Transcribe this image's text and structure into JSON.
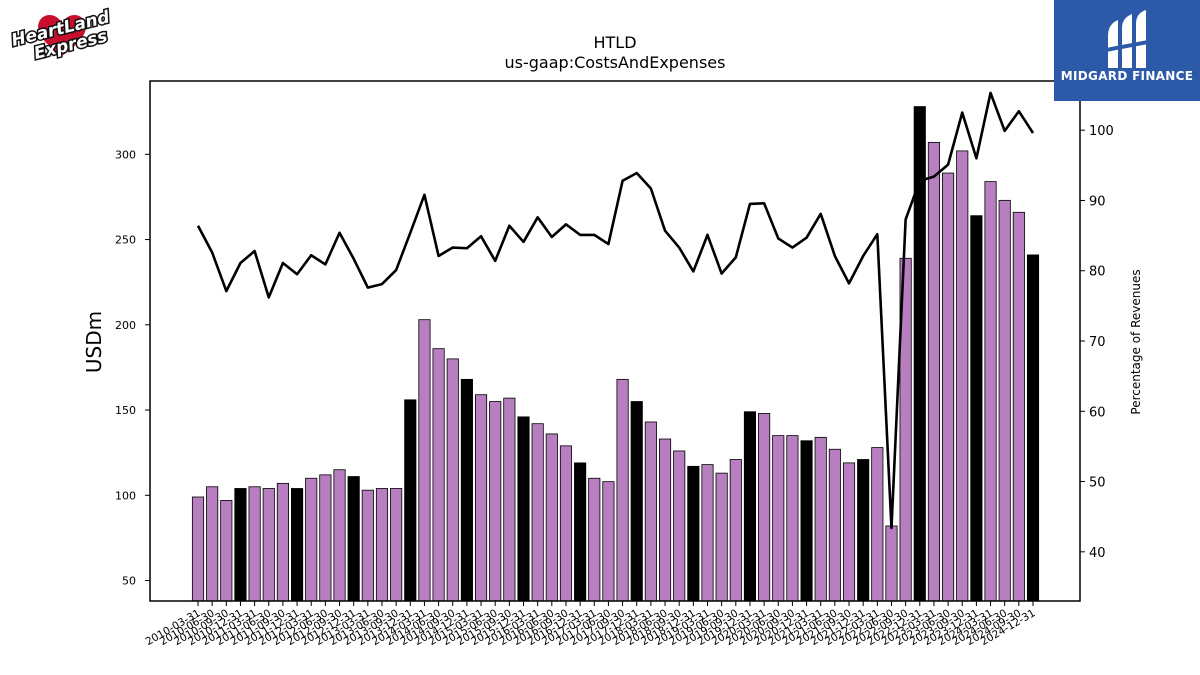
{
  "header": {
    "title": "HTLD",
    "subtitle": "us-gaap:CostsAndExpenses"
  },
  "logos": {
    "company_wordmark": "Heartland Express",
    "sponsor_name": "MIDGARD FINANCE"
  },
  "chart_data": {
    "type": "bar",
    "title": "HTLD",
    "subtitle": "us-gaap:CostsAndExpenses",
    "ylabel": "USDm",
    "y2label": "Percentage of Revenues",
    "ylim": [
      38,
      343
    ],
    "y2lim": [
      33,
      107
    ],
    "yticks": [
      50,
      100,
      150,
      200,
      250,
      300
    ],
    "y2ticks": [
      40,
      50,
      60,
      70,
      80,
      90,
      100
    ],
    "colors": {
      "quarter": "#b77fbf",
      "annual": "#000000",
      "line": "#000000"
    },
    "categories": [
      "2010-03-31",
      "2010-06-30",
      "2010-09-30",
      "2010-12-31",
      "2011-03-31",
      "2011-06-30",
      "2011-09-30",
      "2011-12-31",
      "2012-03-31",
      "2012-06-30",
      "2012-09-30",
      "2012-12-31",
      "2013-03-31",
      "2013-06-30",
      "2013-09-30",
      "2013-12-31",
      "2014-03-31",
      "2014-06-30",
      "2014-09-30",
      "2014-12-31",
      "2015-03-31",
      "2015-06-30",
      "2015-09-30",
      "2015-12-31",
      "2016-03-31",
      "2016-06-30",
      "2016-09-30",
      "2016-12-31",
      "2017-03-31",
      "2017-06-30",
      "2017-09-30",
      "2017-12-31",
      "2018-03-31",
      "2018-06-30",
      "2018-09-30",
      "2018-12-31",
      "2019-03-31",
      "2019-06-30",
      "2019-09-30",
      "2019-12-31",
      "2020-03-31",
      "2020-06-30",
      "2020-09-30",
      "2020-12-31",
      "2021-03-31",
      "2021-06-30",
      "2021-09-30",
      "2021-12-31",
      "2022-03-31",
      "2022-06-30",
      "2022-09-30",
      "2022-12-31",
      "2023-03-31",
      "2023-06-30",
      "2023-09-30",
      "2023-12-31",
      "2024-03-31",
      "2024-06-30",
      "2024-09-30",
      "2024-12-31"
    ],
    "shown_tick_labels": [
      "2010-03-31",
      "2010-06-30",
      "2010-09-30",
      "2010-12-31",
      "2011-03-31",
      "2011-06-30",
      "2011-09-30",
      "2011-12-31",
      "2012-03-31",
      "2012-06-30",
      "2012-09-30",
      "2012-12-31",
      "2013-03-31",
      "2013-06-30",
      "2013-09-30",
      "2013-12-31",
      "2014-03-31",
      "2014-06-30",
      "2014-09-30",
      "2014-12-31",
      "2015-03-31",
      "2015-06-30",
      "2015-09-30",
      "2015-12-31",
      "2016-03-31",
      "2016-06-30",
      "2016-09-30",
      "2016-12-31",
      "2017-03-31",
      "2017-06-30",
      "2017-09-30",
      "2017-12-31",
      "2018-03-31",
      "2018-06-30",
      "2018-09-30",
      "2018-12-31",
      "2019-03-31",
      "2019-06-30",
      "2019-09-30",
      "2019-12-31",
      "2020-03-31",
      "2020-06-30",
      "2020-09-30",
      "2020-12-31",
      "2021-03-31",
      "2021-06-30",
      "2021-09-30",
      "2021-12-31",
      "2022-03-31",
      "2022-06-30",
      "2022-09-30",
      "2022-12-31",
      "2023-03-31",
      "2023-06-30",
      "2023-09-30",
      "2023-12-31",
      "2024-03-31",
      "2024-06-30",
      "2024-09-30",
      "2024-12-31"
    ],
    "annual": [
      false,
      false,
      false,
      true,
      false,
      false,
      false,
      true,
      false,
      false,
      false,
      true,
      false,
      false,
      false,
      true,
      false,
      false,
      false,
      true,
      false,
      false,
      false,
      true,
      false,
      false,
      false,
      true,
      false,
      false,
      false,
      true,
      false,
      false,
      false,
      true,
      false,
      false,
      false,
      true,
      false,
      false,
      false,
      true,
      false,
      false,
      false,
      true,
      false,
      false,
      false,
      true,
      false,
      false,
      false,
      true,
      false,
      false,
      false,
      true
    ],
    "values": [
      99,
      105,
      97,
      104,
      105,
      104,
      107,
      104,
      110,
      112,
      115,
      111,
      103,
      104,
      104,
      156,
      203,
      186,
      180,
      168,
      159,
      155,
      157,
      146,
      142,
      136,
      129,
      119,
      110,
      108,
      168,
      155,
      143,
      133,
      126,
      117,
      118,
      113,
      121,
      149,
      148,
      135,
      135,
      132,
      134,
      127,
      119,
      121,
      128,
      82,
      239,
      328,
      307,
      289,
      302,
      264,
      284,
      273,
      266,
      241
    ],
    "line_values": [
      86.4,
      82.6,
      77.1,
      81.1,
      82.8,
      76.2,
      81.1,
      79.5,
      82.2,
      80.9,
      85.4,
      81.7,
      77.6,
      78.1,
      80.1,
      85.4,
      90.8,
      82.1,
      83.3,
      83.2,
      84.9,
      81.4,
      86.4,
      84.1,
      87.6,
      84.8,
      86.6,
      85.1,
      85.1,
      83.8,
      92.8,
      93.9,
      91.7,
      85.7,
      83.3,
      79.9,
      85.1,
      79.6,
      81.9,
      89.5,
      89.6,
      84.6,
      83.3,
      84.7,
      88.1,
      82.1,
      78.2,
      82.1,
      85.2,
      43.4,
      87.3,
      92.8,
      93.4,
      95.1,
      102.5,
      96.0,
      105.3,
      99.9,
      102.7,
      99.6
    ]
  }
}
